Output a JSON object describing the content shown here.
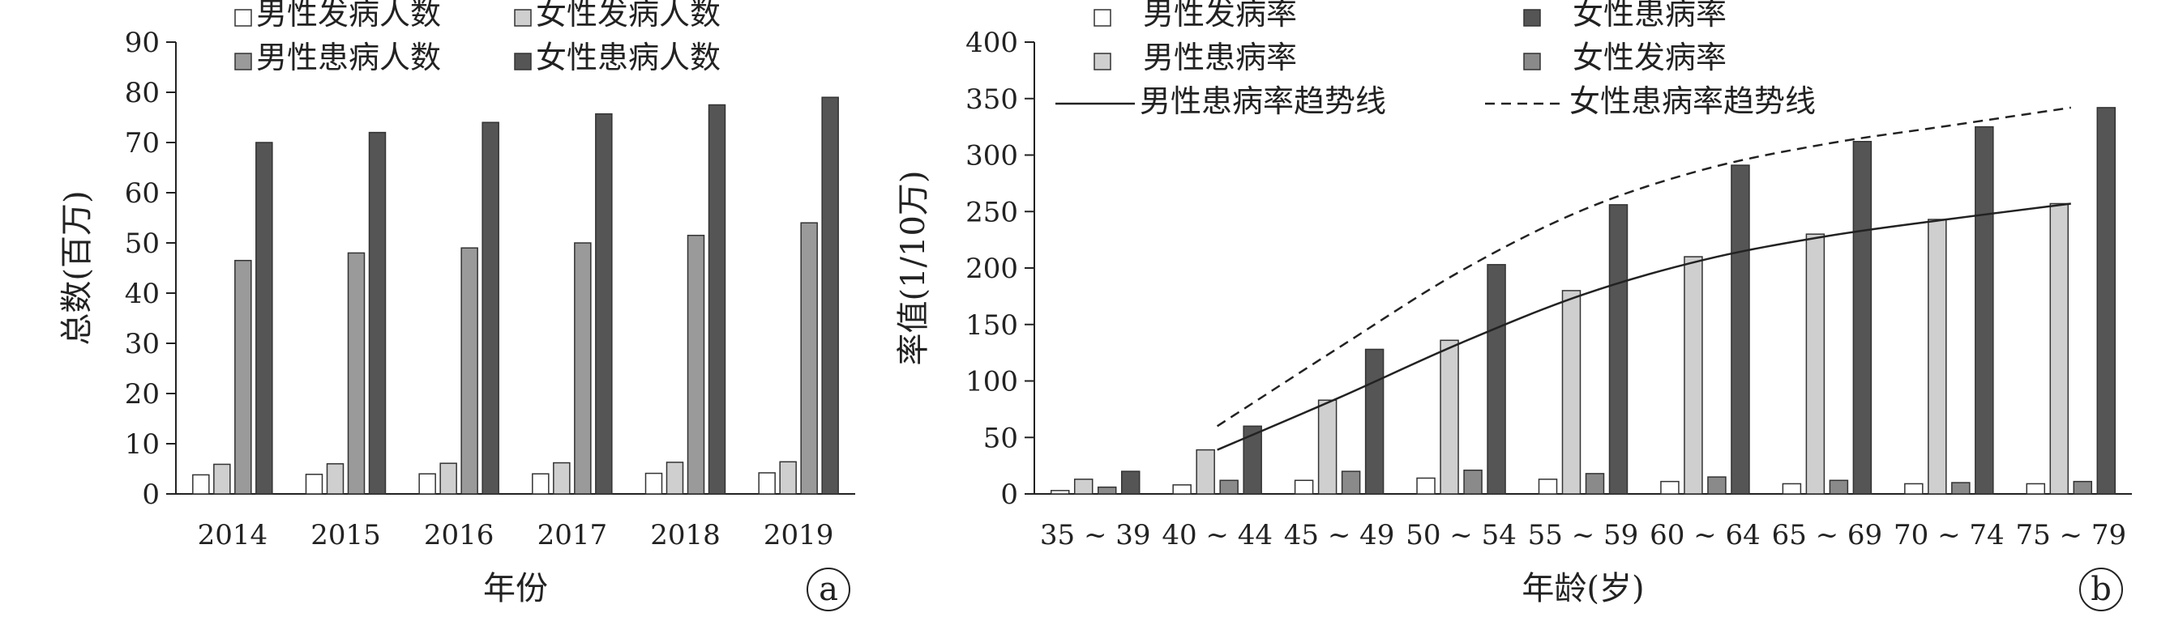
{
  "chart_data": [
    {
      "panel": "a",
      "type": "bar",
      "xlabel": "年份",
      "ylabel": "总数(百万)",
      "ylim": [
        0,
        90
      ],
      "yticks": [
        "0",
        "10",
        "20",
        "30",
        "40",
        "50",
        "60",
        "70",
        "80",
        "90"
      ],
      "categories": [
        "2014",
        "2015",
        "2016",
        "2017",
        "2018",
        "2019"
      ],
      "legend_position": "top",
      "series": [
        {
          "name": "男性发病人数",
          "color": "#ffffff",
          "values": [
            3.8,
            3.9,
            4.0,
            4.0,
            4.1,
            4.2
          ]
        },
        {
          "name": "女性发病人数",
          "color": "#cfcfcf",
          "values": [
            5.9,
            6.0,
            6.1,
            6.2,
            6.3,
            6.4
          ]
        },
        {
          "name": "男性患病人数",
          "color": "#9a9a9a",
          "values": [
            46.5,
            48.0,
            49.0,
            50.0,
            51.5,
            54.0
          ]
        },
        {
          "name": "女性患病人数",
          "color": "#555555",
          "values": [
            70.0,
            72.0,
            74.0,
            75.7,
            77.5,
            79.0
          ]
        }
      ]
    },
    {
      "panel": "b",
      "type": "bar",
      "xlabel": "年龄(岁)",
      "ylabel": "率值(1/10万)",
      "ylim": [
        0,
        400
      ],
      "yticks": [
        "0",
        "50",
        "100",
        "150",
        "200",
        "250",
        "300",
        "350",
        "400"
      ],
      "categories": [
        "35 ~ 39",
        "40 ~ 44",
        "45 ~ 49",
        "50 ~ 54",
        "55 ~ 59",
        "60 ~ 64",
        "65 ~ 69",
        "70 ~ 74",
        "75 ~ 79"
      ],
      "legend_position": "top",
      "series": [
        {
          "name": "男性发病率",
          "color": "#ffffff",
          "values": [
            3,
            8,
            12,
            14,
            13,
            11,
            9,
            9,
            9
          ]
        },
        {
          "name": "男性患病率",
          "color": "#cfcfcf",
          "values": [
            13,
            39,
            83,
            136,
            180,
            210,
            230,
            243,
            257
          ]
        },
        {
          "name": "女性发病率",
          "color": "#8a8a8a",
          "values": [
            6,
            12,
            20,
            21,
            18,
            15,
            12,
            10,
            11
          ]
        },
        {
          "name": "女性患病率",
          "color": "#555555",
          "values": [
            20,
            60,
            128,
            203,
            256,
            291,
            312,
            325,
            342
          ]
        }
      ],
      "trendlines": [
        {
          "name": "男性患病率趋势线",
          "style": "solid",
          "x_range": [
            "40 ~ 44",
            "75 ~ 79"
          ]
        },
        {
          "name": "女性患病率趋势线",
          "style": "dashed",
          "x_range": [
            "40 ~ 44",
            "75 ~ 79"
          ]
        }
      ]
    }
  ],
  "panel_a_badge": "a",
  "panel_b_badge": "b"
}
